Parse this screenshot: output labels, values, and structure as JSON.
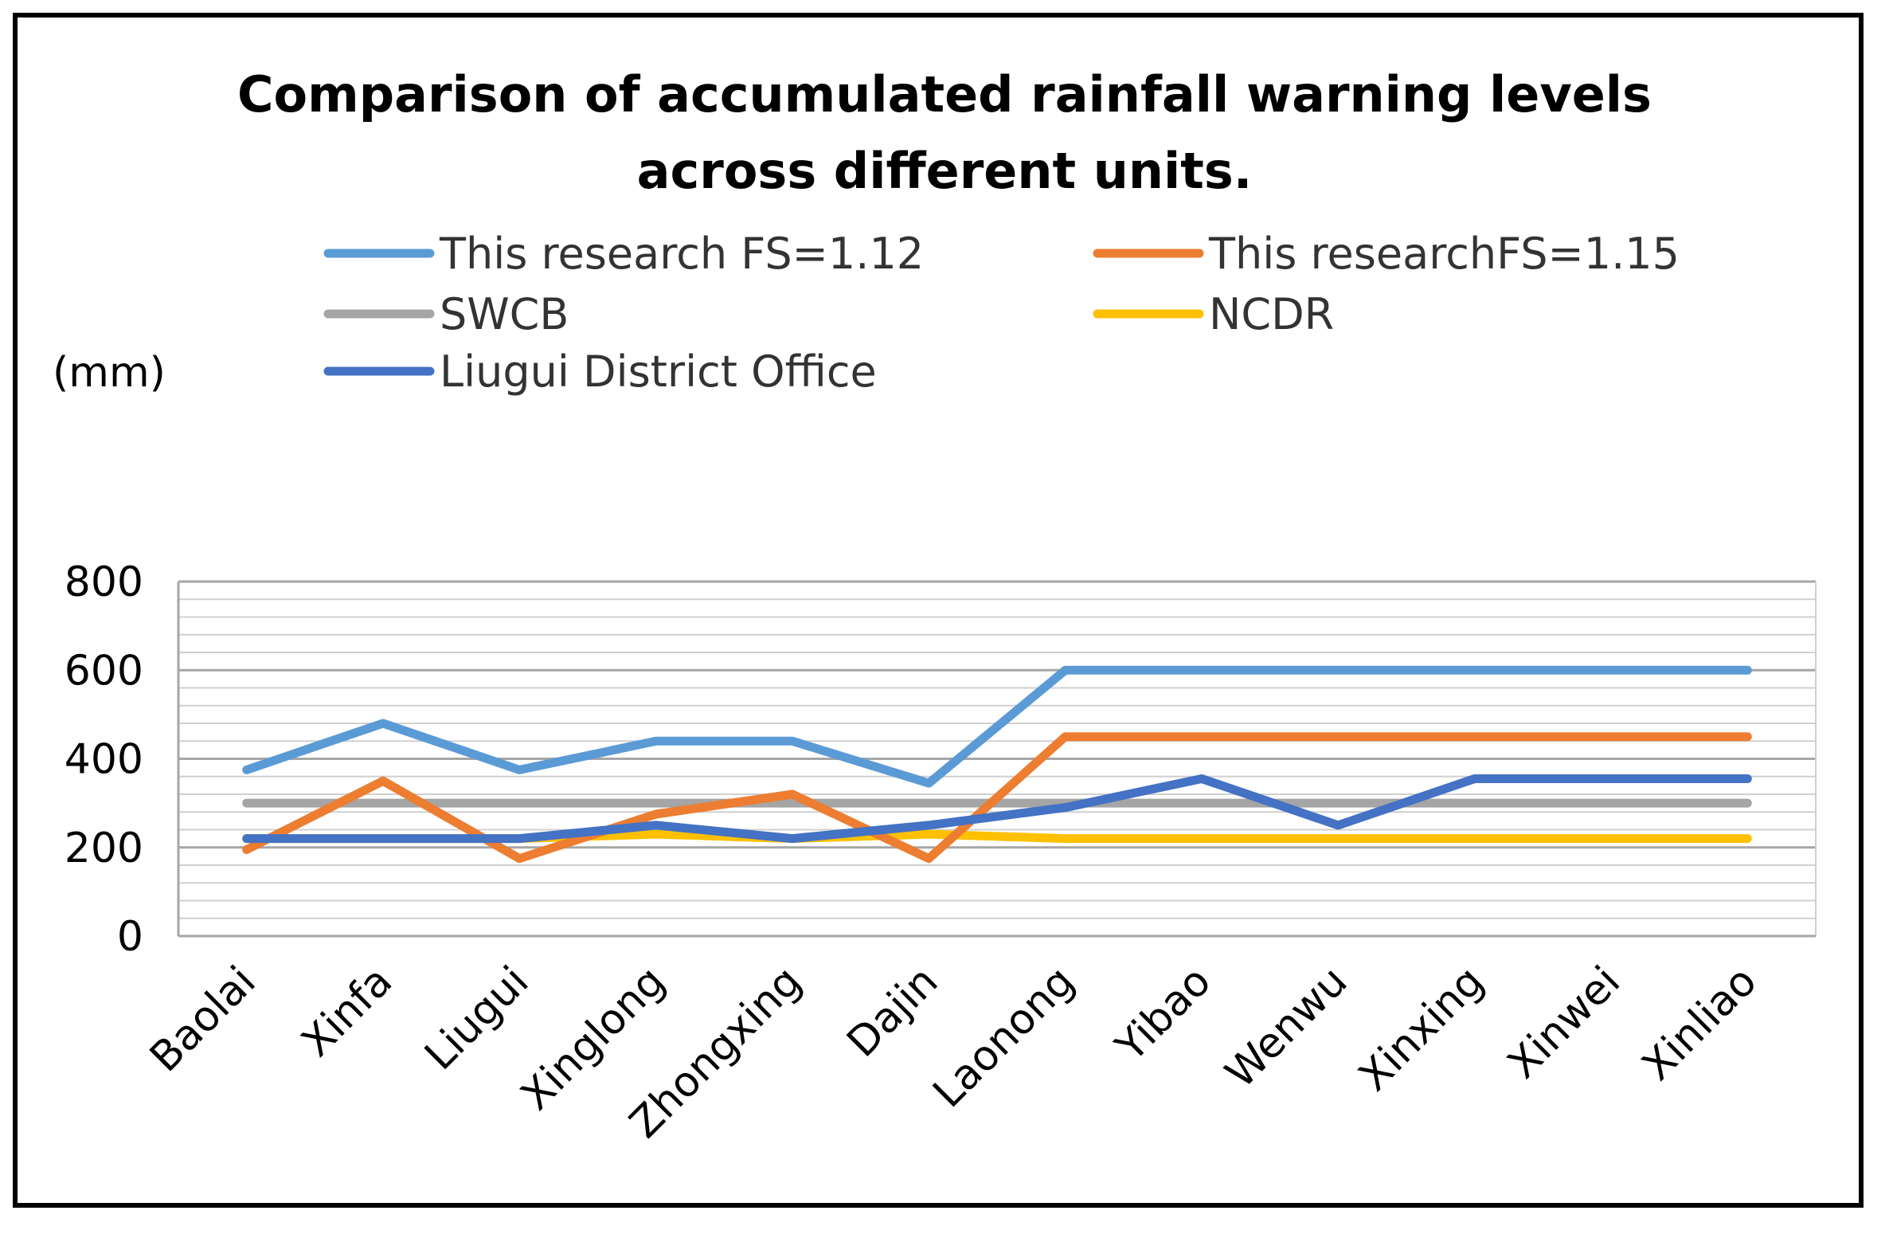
{
  "chart_data": {
    "type": "line",
    "title_lines": [
      "Comparison of accumulated rainfall warning levels",
      "across different units."
    ],
    "ylabel": "(mm)",
    "xlabel": "",
    "ylim": [
      0,
      800
    ],
    "yticks": [
      0,
      200,
      400,
      600,
      800
    ],
    "minor_step": 40,
    "grid": true,
    "legend_position": "top",
    "categories": [
      "Baolai",
      "Xinfa",
      "Liugui",
      "Xinglong",
      "Zhongxing",
      "Dajin",
      "Laonong",
      "Yibao",
      "Wenwu",
      "Xinxing",
      "Xinwei",
      "Xinliao"
    ],
    "series": [
      {
        "name": "This research FS=1.12",
        "color": "#5B9BD5",
        "values": [
          375,
          480,
          375,
          440,
          440,
          345,
          600,
          600,
          600,
          600,
          600,
          600
        ]
      },
      {
        "name": "This researchFS=1.15",
        "color": "#ED7D31",
        "values": [
          195,
          350,
          175,
          275,
          320,
          175,
          450,
          450,
          450,
          450,
          450,
          450
        ]
      },
      {
        "name": "SWCB",
        "color": "#A5A5A5",
        "values": [
          300,
          300,
          300,
          300,
          300,
          300,
          300,
          300,
          300,
          300,
          300,
          300
        ]
      },
      {
        "name": "NCDR",
        "color": "#FFC000",
        "values": [
          220,
          220,
          220,
          230,
          220,
          230,
          220,
          220,
          220,
          220,
          220,
          220
        ]
      },
      {
        "name": "Liugui District Office",
        "color": "#4472C4",
        "values": [
          220,
          220,
          220,
          250,
          220,
          250,
          290,
          355,
          250,
          355,
          355,
          355
        ]
      }
    ]
  }
}
